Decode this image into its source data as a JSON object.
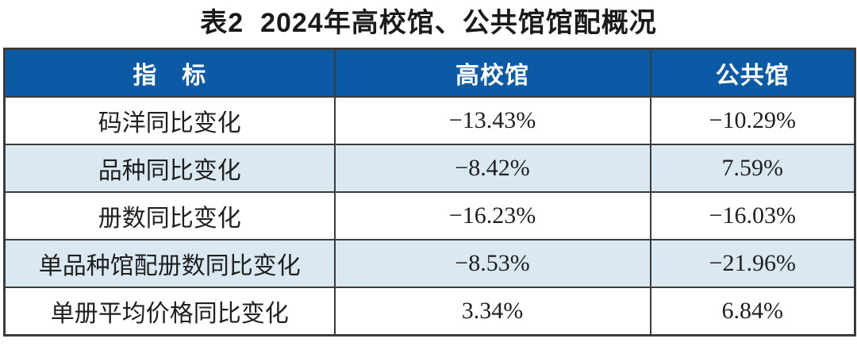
{
  "title": "表2  2024年高校馆、公共馆馆配概况",
  "colors": {
    "header_bg": "#0a5aa6",
    "header_text": "#ffffff",
    "row_alt_bg": "#d9e8f1",
    "row_bg": "#ffffff",
    "border": "#3b3b3b",
    "body_text": "#1f1f1f"
  },
  "chart_data": {
    "type": "table",
    "title": "表2 2024年高校馆、公共馆馆配概况",
    "columns": [
      "指　标",
      "高校馆",
      "公共馆"
    ],
    "rows": [
      [
        "码洋同比变化",
        "−13.43%",
        "−10.29%"
      ],
      [
        "品种同比变化",
        "−8.42%",
        "7.59%"
      ],
      [
        "册数同比变化",
        "−16.23%",
        "−16.03%"
      ],
      [
        "单品种馆配册数同比变化",
        "−8.53%",
        "−21.96%"
      ],
      [
        "单册平均价格同比变化",
        "3.34%",
        "6.84%"
      ]
    ]
  }
}
